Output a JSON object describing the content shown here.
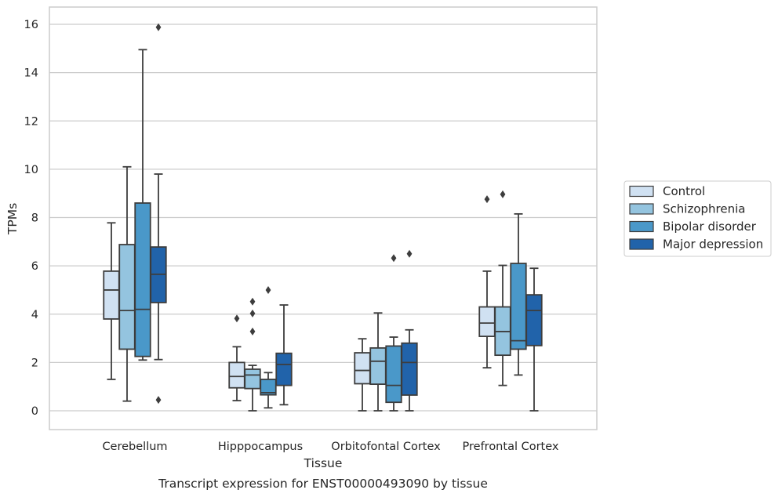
{
  "chart_data": {
    "type": "box",
    "title": "",
    "caption": "Transcript expression for ENST00000493090 by tissue",
    "xlabel": "Tissue",
    "ylabel": "TPMs",
    "ylim": [
      -0.75,
      16.7
    ],
    "yticks": [
      0,
      2,
      4,
      6,
      8,
      10,
      12,
      14,
      16
    ],
    "grid": "horizontal",
    "legend_position": "right",
    "categories": [
      "Cerebellum",
      "Hipppocampus",
      "Orbitofontal Cortex",
      "Prefrontal Cortex"
    ],
    "series": [
      {
        "name": "Control",
        "color": "#d0e1f2",
        "boxes": [
          {
            "whisker_low": 1.3,
            "q1": 3.8,
            "median": 5.0,
            "q3": 5.78,
            "whisker_high": 7.78,
            "outliers": []
          },
          {
            "whisker_low": 0.42,
            "q1": 0.95,
            "median": 1.42,
            "q3": 2.0,
            "whisker_high": 2.65,
            "outliers": [
              3.82
            ]
          },
          {
            "whisker_low": 0.0,
            "q1": 1.12,
            "median": 1.67,
            "q3": 2.4,
            "whisker_high": 2.98,
            "outliers": []
          },
          {
            "whisker_low": 1.78,
            "q1": 3.08,
            "median": 3.63,
            "q3": 4.3,
            "whisker_high": 5.78,
            "outliers": [
              8.76
            ]
          }
        ]
      },
      {
        "name": "Schizophrenia",
        "color": "#94c4df",
        "boxes": [
          {
            "whisker_low": 0.4,
            "q1": 2.55,
            "median": 4.15,
            "q3": 6.88,
            "whisker_high": 10.1,
            "outliers": []
          },
          {
            "whisker_low": 0.0,
            "q1": 0.92,
            "median": 1.48,
            "q3": 1.72,
            "whisker_high": 1.88,
            "outliers": [
              4.52,
              4.03,
              3.28
            ]
          },
          {
            "whisker_low": 0.0,
            "q1": 1.1,
            "median": 2.05,
            "q3": 2.6,
            "whisker_high": 4.05,
            "outliers": []
          },
          {
            "whisker_low": 1.05,
            "q1": 2.3,
            "median": 3.28,
            "q3": 4.3,
            "whisker_high": 6.02,
            "outliers": [
              8.96
            ]
          }
        ]
      },
      {
        "name": "Bipolar disorder",
        "color": "#4a98c9",
        "boxes": [
          {
            "whisker_low": 2.1,
            "q1": 2.25,
            "median": 4.2,
            "q3": 8.6,
            "whisker_high": 14.95,
            "outliers": []
          },
          {
            "whisker_low": 0.12,
            "q1": 0.66,
            "median": 0.75,
            "q3": 1.3,
            "whisker_high": 1.58,
            "outliers": [
              5.0
            ]
          },
          {
            "whisker_low": 0.0,
            "q1": 0.35,
            "median": 1.05,
            "q3": 2.68,
            "whisker_high": 3.05,
            "outliers": [
              6.32
            ]
          },
          {
            "whisker_low": 1.48,
            "q1": 2.55,
            "median": 2.9,
            "q3": 6.1,
            "whisker_high": 8.15,
            "outliers": []
          }
        ]
      },
      {
        "name": "Major depression",
        "color": "#2163aa",
        "boxes": [
          {
            "whisker_low": 2.12,
            "q1": 4.48,
            "median": 5.65,
            "q3": 6.78,
            "whisker_high": 9.8,
            "outliers": [
              15.88,
              0.45
            ]
          },
          {
            "whisker_low": 0.25,
            "q1": 1.05,
            "median": 1.92,
            "q3": 2.38,
            "whisker_high": 4.38,
            "outliers": []
          },
          {
            "whisker_low": 0.0,
            "q1": 0.65,
            "median": 2.0,
            "q3": 2.8,
            "whisker_high": 3.35,
            "outliers": [
              6.5
            ]
          },
          {
            "whisker_low": 0.0,
            "q1": 2.7,
            "median": 4.15,
            "q3": 4.8,
            "whisker_high": 5.9,
            "outliers": []
          }
        ]
      }
    ],
    "colors": {
      "grid": "#cccccc",
      "axes_edge": "#cccccc",
      "box_edge": "#3d3d3d"
    }
  }
}
